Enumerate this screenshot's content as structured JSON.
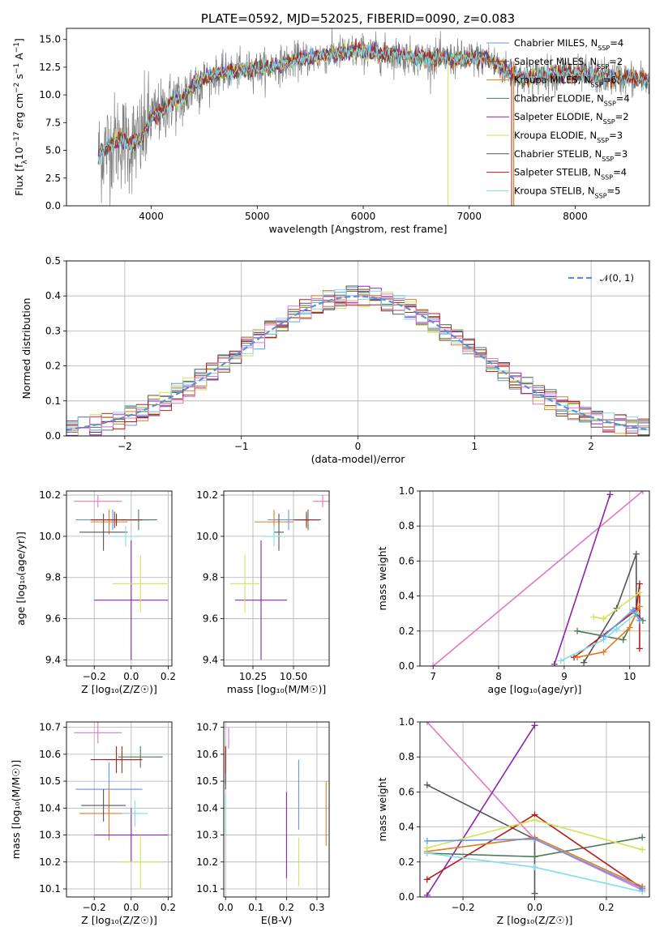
{
  "palette": {
    "chabrier_miles": "#6495ed",
    "salpeter_miles": "#8b4513",
    "kroupa_miles": "#e07b20",
    "chabrier_elodie": "#4a7c59",
    "salpeter_elodie": "#8e24aa",
    "kroupa_elodie": "#d4e157",
    "chabrier_stelib": "#555555",
    "salpeter_stelib": "#b71c1c",
    "kroupa_stelib": "#80deea",
    "pink": "#e377c2",
    "data_gray": "#808080",
    "gauss": "#5b8fd6"
  },
  "chart_data": [
    {
      "id": "spectrum",
      "type": "line",
      "title": "PLATE=0592, MJD=52025, FIBERID=0090, z=0.083",
      "xlabel": "wavelength [Angstrom, rest frame]",
      "ylabel_html": "Flux [f<tspan baseline-shift='sub' font-size='9'>λ</tspan>10<tspan baseline-shift='super' font-size='9'>−17</tspan> erg cm<tspan baseline-shift='super' font-size='9'>−2</tspan> s<tspan baseline-shift='super' font-size='9'>−1</tspan> A<tspan baseline-shift='super' font-size='9'>−1</tspan>]",
      "xlim": [
        3200,
        8700
      ],
      "ylim": [
        0,
        16
      ],
      "xticks": [
        4000,
        5000,
        6000,
        7000,
        8000
      ],
      "yticks": [
        0.0,
        2.5,
        5.0,
        7.5,
        10.0,
        12.5,
        15.0
      ],
      "grid": false,
      "legend": "right",
      "legend_entries": [
        {
          "imf": "Chabrier",
          "lib": "MILES",
          "n": "4",
          "color": "#6495ed"
        },
        {
          "imf": "Salpeter",
          "lib": "MILES",
          "n": "2",
          "color": "#8b4513"
        },
        {
          "imf": "Kroupa",
          "lib": "MILES",
          "n": "6",
          "color": "#e07b20"
        },
        {
          "imf": "Chabrier",
          "lib": "ELODIE",
          "n": "4",
          "color": "#4a7c59"
        },
        {
          "imf": "Salpeter",
          "lib": "ELODIE",
          "n": "2",
          "color": "#8e24aa"
        },
        {
          "imf": "Kroupa",
          "lib": "ELODIE",
          "n": "3",
          "color": "#d4e157"
        },
        {
          "imf": "Chabrier",
          "lib": "STELIB",
          "n": "3",
          "color": "#555555"
        },
        {
          "imf": "Salpeter",
          "lib": "STELIB",
          "n": "4",
          "color": "#b71c1c"
        },
        {
          "imf": "Kroupa",
          "lib": "STELIB",
          "n": "5",
          "color": "#80deea"
        }
      ],
      "legend_n_label": "N",
      "legend_n_sub": "SSP",
      "continuum": [
        [
          3500,
          4.5
        ],
        [
          3600,
          5.5
        ],
        [
          3700,
          6.0
        ],
        [
          3800,
          5.5
        ],
        [
          3900,
          6.0
        ],
        [
          4000,
          8.0
        ],
        [
          4100,
          8.5
        ],
        [
          4200,
          9.5
        ],
        [
          4300,
          9.5
        ],
        [
          4400,
          11.0
        ],
        [
          4500,
          11.5
        ],
        [
          4700,
          12.0
        ],
        [
          4900,
          12.3
        ],
        [
          5100,
          12.5
        ],
        [
          5200,
          12.7
        ],
        [
          5400,
          13.2
        ],
        [
          5600,
          13.5
        ],
        [
          5800,
          13.8
        ],
        [
          6000,
          13.9
        ],
        [
          6200,
          13.7
        ],
        [
          6400,
          13.5
        ],
        [
          6600,
          13.3
        ],
        [
          6800,
          13.2
        ],
        [
          7000,
          13.3
        ],
        [
          7200,
          13.2
        ],
        [
          7300,
          12.5
        ],
        [
          7400,
          12.0
        ],
        [
          7500,
          11.5
        ],
        [
          7700,
          11.8
        ],
        [
          7900,
          12.0
        ],
        [
          8100,
          11.8
        ],
        [
          8300,
          11.6
        ],
        [
          8500,
          11.5
        ],
        [
          8700,
          11.3
        ]
      ]
    },
    {
      "id": "residuals",
      "type": "step",
      "xlabel": "(data-model)/error",
      "ylabel": "Normed distribution",
      "xlim": [
        -2.5,
        2.5
      ],
      "ylim": [
        0,
        0.5
      ],
      "xticks": [
        -2,
        -1,
        0,
        1,
        2
      ],
      "yticks": [
        0.0,
        0.1,
        0.2,
        0.3,
        0.4,
        0.5
      ],
      "grid": true,
      "legend": "top-right",
      "legend_label": "𝒩(0, 1)",
      "bin_width": 0.1
    },
    {
      "id": "age_vs_Z",
      "type": "errorbar",
      "xlabel": "Z [log₁₀(Z/Z☉)]",
      "ylabel": "age  [log₁₀(age/yr)]",
      "xlim": [
        -0.35,
        0.22
      ],
      "ylim": [
        9.37,
        10.22
      ],
      "xticks": [
        -0.2,
        0.0,
        0.2
      ],
      "yticks": [
        9.4,
        9.6,
        9.8,
        10.0,
        10.2
      ],
      "grid": true,
      "points": [
        {
          "x": -0.1,
          "y": 10.08,
          "xerr": 0.2,
          "yerr": 0.05,
          "color": "#6495ed"
        },
        {
          "x": -0.09,
          "y": 10.08,
          "xerr": 0.12,
          "yerr": 0.04,
          "color": "#8b4513"
        },
        {
          "x": -0.12,
          "y": 10.07,
          "xerr": 0.1,
          "yerr": 0.06,
          "color": "#e07b20"
        },
        {
          "x": 0.04,
          "y": 10.08,
          "xerr": 0.1,
          "yerr": 0.05,
          "color": "#4a7c59"
        },
        {
          "x": 0.0,
          "y": 9.69,
          "xerr": 0.2,
          "yerr": 0.29,
          "color": "#8e24aa"
        },
        {
          "x": 0.05,
          "y": 9.77,
          "xerr": 0.15,
          "yerr": 0.14,
          "color": "#d4e157"
        },
        {
          "x": -0.15,
          "y": 10.02,
          "xerr": 0.13,
          "yerr": 0.09,
          "color": "#555555"
        },
        {
          "x": -0.08,
          "y": 10.08,
          "xerr": 0.14,
          "yerr": 0.03,
          "color": "#b71c1c"
        },
        {
          "x": -0.03,
          "y": 10.0,
          "xerr": 0.08,
          "yerr": 0.05,
          "color": "#80deea"
        },
        {
          "x": -0.18,
          "y": 10.17,
          "xerr": 0.13,
          "yerr": 0.03,
          "color": "#e377c2"
        }
      ]
    },
    {
      "id": "age_vs_mass",
      "type": "errorbar",
      "xlabel": "mass [log₁₀(M/M☉)]",
      "ylabel": "",
      "xlim": [
        10.07,
        10.72
      ],
      "ylim": [
        9.37,
        10.22
      ],
      "xticks": [
        10.25,
        10.5
      ],
      "yticks": [
        9.4,
        9.6,
        9.8,
        10.0,
        10.2
      ],
      "grid": true,
      "points": [
        {
          "x": 10.47,
          "y": 10.08,
          "xerr": 0.13,
          "yerr": 0.05,
          "color": "#6495ed"
        },
        {
          "x": 10.58,
          "y": 10.08,
          "xerr": 0.05,
          "yerr": 0.04,
          "color": "#8b4513"
        },
        {
          "x": 10.38,
          "y": 10.07,
          "xerr": 0.12,
          "yerr": 0.06,
          "color": "#e07b20"
        },
        {
          "x": 10.59,
          "y": 10.08,
          "xerr": 0.08,
          "yerr": 0.05,
          "color": "#4a7c59"
        },
        {
          "x": 10.3,
          "y": 9.69,
          "xerr": 0.16,
          "yerr": 0.29,
          "color": "#8e24aa"
        },
        {
          "x": 10.2,
          "y": 9.77,
          "xerr": 0.09,
          "yerr": 0.14,
          "color": "#d4e157"
        },
        {
          "x": 10.41,
          "y": 10.02,
          "xerr": 0.03,
          "yerr": 0.09,
          "color": "#555555"
        },
        {
          "x": 10.58,
          "y": 10.08,
          "xerr": 0.08,
          "yerr": 0.03,
          "color": "#b71c1c"
        },
        {
          "x": 10.38,
          "y": 10.0,
          "xerr": 0.07,
          "yerr": 0.05,
          "color": "#80deea"
        },
        {
          "x": 10.68,
          "y": 10.17,
          "xerr": 0.06,
          "yerr": 0.03,
          "color": "#e377c2"
        }
      ]
    },
    {
      "id": "weight_vs_age",
      "type": "line",
      "xlabel": "age  [log₁₀(age/yr)]",
      "ylabel": "mass weight",
      "xlim": [
        6.8,
        10.3
      ],
      "ylim": [
        0,
        1
      ],
      "xticks": [
        7,
        8,
        9,
        10
      ],
      "yticks": [
        0.0,
        0.2,
        0.4,
        0.6,
        0.8,
        1.0
      ],
      "grid": true,
      "series": [
        {
          "color": "#e377c2",
          "x": [
            7.0,
            10.2
          ],
          "y": [
            0.0,
            1.0
          ]
        },
        {
          "color": "#8e24aa",
          "x": [
            8.85,
            9.7
          ],
          "y": [
            0.01,
            0.98
          ]
        },
        {
          "color": "#555555",
          "x": [
            9.3,
            9.8,
            10.1,
            10.1
          ],
          "y": [
            0.02,
            0.33,
            0.64,
            0.33
          ]
        },
        {
          "color": "#4a7c59",
          "x": [
            9.2,
            9.9,
            10.1,
            10.2
          ],
          "y": [
            0.2,
            0.15,
            0.3,
            0.26
          ]
        },
        {
          "color": "#b71c1c",
          "x": [
            9.15,
            10.1,
            10.15,
            10.15
          ],
          "y": [
            0.05,
            0.32,
            0.47,
            0.1
          ]
        },
        {
          "color": "#e07b20",
          "x": [
            9.2,
            9.6,
            10.0,
            10.15
          ],
          "y": [
            0.05,
            0.08,
            0.22,
            0.34
          ]
        },
        {
          "color": "#d4e157",
          "x": [
            9.45,
            9.6,
            10.15
          ],
          "y": [
            0.28,
            0.27,
            0.42
          ]
        },
        {
          "color": "#80deea",
          "x": [
            8.95,
            9.6,
            9.8,
            10.1
          ],
          "y": [
            0.03,
            0.15,
            0.21,
            0.3
          ]
        },
        {
          "color": "#6495ed",
          "x": [
            9.6,
            10.05,
            10.15
          ],
          "y": [
            0.17,
            0.32,
            0.26
          ]
        }
      ]
    },
    {
      "id": "mass_vs_Z",
      "type": "errorbar",
      "xlabel": "Z [log₁₀(Z/Z☉)]",
      "ylabel": "mass [log₁₀(M/M☉)]",
      "xlim": [
        -0.35,
        0.22
      ],
      "ylim": [
        10.07,
        10.72
      ],
      "xticks": [
        -0.2,
        0.0,
        0.2
      ],
      "yticks": [
        10.1,
        10.2,
        10.3,
        10.4,
        10.5,
        10.6,
        10.7
      ],
      "grid": true,
      "points": [
        {
          "x": -0.12,
          "y": 10.47,
          "xerr": 0.18,
          "yerr": 0.1,
          "color": "#6495ed"
        },
        {
          "x": -0.05,
          "y": 10.58,
          "xerr": 0.09,
          "yerr": 0.05,
          "color": "#8b4513"
        },
        {
          "x": -0.12,
          "y": 10.38,
          "xerr": 0.16,
          "yerr": 0.1,
          "color": "#e07b20"
        },
        {
          "x": 0.05,
          "y": 10.59,
          "xerr": 0.12,
          "yerr": 0.04,
          "color": "#4a7c59"
        },
        {
          "x": 0.0,
          "y": 10.3,
          "xerr": 0.2,
          "yerr": 0.1,
          "color": "#8e24aa"
        },
        {
          "x": 0.05,
          "y": 10.2,
          "xerr": 0.12,
          "yerr": 0.1,
          "color": "#d4e157"
        },
        {
          "x": -0.15,
          "y": 10.41,
          "xerr": 0.12,
          "yerr": 0.06,
          "color": "#555555"
        },
        {
          "x": -0.08,
          "y": 10.58,
          "xerr": 0.14,
          "yerr": 0.05,
          "color": "#b71c1c"
        },
        {
          "x": 0.02,
          "y": 10.38,
          "xerr": 0.07,
          "yerr": 0.05,
          "color": "#80deea"
        },
        {
          "x": -0.18,
          "y": 10.68,
          "xerr": 0.13,
          "yerr": 0.04,
          "color": "#e377c2"
        }
      ]
    },
    {
      "id": "mass_vs_ebv",
      "type": "errorbar",
      "xlabel": "E(B-V)",
      "ylabel": "",
      "xlim": [
        -0.006,
        0.34
      ],
      "ylim": [
        10.07,
        10.72
      ],
      "xticks": [
        0.0,
        0.1,
        0.2,
        0.3
      ],
      "yticks": [
        10.1,
        10.2,
        10.3,
        10.4,
        10.5,
        10.6,
        10.7
      ],
      "grid": true,
      "points": [
        {
          "x": 0.24,
          "y": 10.45,
          "xerr": 0,
          "yerr": 0.13,
          "color": "#6495ed"
        },
        {
          "x": 0.0,
          "y": 10.58,
          "xerr": 0,
          "yerr": 0.05,
          "color": "#8b4513"
        },
        {
          "x": 0.33,
          "y": 10.38,
          "xerr": 0,
          "yerr": 0.12,
          "color": "#e07b20"
        },
        {
          "x": 0.0,
          "y": 10.55,
          "xerr": 0,
          "yerr": 0.06,
          "color": "#4a7c59"
        },
        {
          "x": 0.2,
          "y": 10.3,
          "xerr": 0,
          "yerr": 0.16,
          "color": "#8e24aa"
        },
        {
          "x": 0.24,
          "y": 10.2,
          "xerr": 0,
          "yerr": 0.09,
          "color": "#d4e157"
        },
        {
          "x": 0.0,
          "y": 10.5,
          "xerr": 0,
          "yerr": 0.03,
          "color": "#555555"
        },
        {
          "x": 0.0,
          "y": 10.58,
          "xerr": 0,
          "yerr": 0.05,
          "color": "#b71c1c"
        },
        {
          "x": 0.0,
          "y": 10.38,
          "xerr": 0,
          "yerr": 0.07,
          "color": "#80deea"
        },
        {
          "x": 0.01,
          "y": 10.66,
          "xerr": 0,
          "yerr": 0.04,
          "color": "#e377c2"
        }
      ]
    },
    {
      "id": "weight_vs_Z",
      "type": "line",
      "xlabel": "Z [log₁₀(Z/Z☉)]",
      "ylabel": "mass weight",
      "xlim": [
        -0.32,
        0.32
      ],
      "ylim": [
        0,
        1
      ],
      "xticks": [
        -0.2,
        0.0,
        0.2
      ],
      "yticks": [
        0.0,
        0.2,
        0.4,
        0.6,
        0.8,
        1.0
      ],
      "grid": true,
      "series": [
        {
          "color": "#e377c2",
          "x": [
            -0.3,
            0.0,
            0.3
          ],
          "y": [
            1.0,
            0.33,
            0.04
          ]
        },
        {
          "color": "#8e24aa",
          "x": [
            -0.3,
            0.0
          ],
          "y": [
            0.01,
            0.98
          ]
        },
        {
          "color": "#555555",
          "x": [
            -0.3,
            0.0,
            0.0
          ],
          "y": [
            0.64,
            0.33,
            0.02
          ]
        },
        {
          "color": "#4a7c59",
          "x": [
            -0.3,
            0.0,
            0.3
          ],
          "y": [
            0.25,
            0.23,
            0.34
          ]
        },
        {
          "color": "#b71c1c",
          "x": [
            -0.3,
            0.0,
            0.3
          ],
          "y": [
            0.1,
            0.47,
            0.05
          ]
        },
        {
          "color": "#e07b20",
          "x": [
            -0.3,
            0.0,
            0.3
          ],
          "y": [
            0.26,
            0.34,
            0.06
          ]
        },
        {
          "color": "#d4e157",
          "x": [
            -0.3,
            0.0,
            0.3
          ],
          "y": [
            0.28,
            0.44,
            0.27
          ]
        },
        {
          "color": "#80deea",
          "x": [
            -0.3,
            0.0,
            0.3
          ],
          "y": [
            0.25,
            0.17,
            0.03
          ]
        },
        {
          "color": "#6495ed",
          "x": [
            -0.3,
            0.0,
            0.3
          ],
          "y": [
            0.32,
            0.33,
            0.05
          ]
        }
      ]
    }
  ]
}
